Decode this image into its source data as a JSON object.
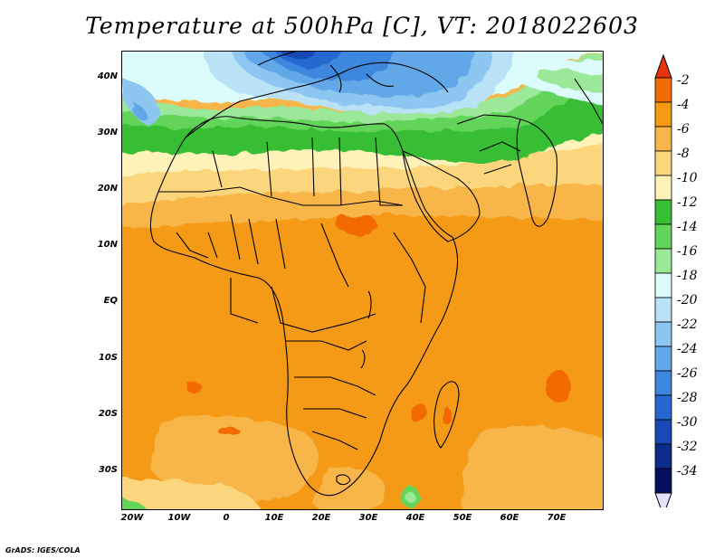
{
  "title": "Temperature at 500hPa [C], VT: 2018022603",
  "credit": "GrADS: IGES/COLA",
  "lat_ticks": [
    "40N",
    "30N",
    "20N",
    "10N",
    "EQ",
    "10S",
    "20S",
    "30S"
  ],
  "lon_ticks": [
    "20W",
    "10W",
    "0",
    "10E",
    "20E",
    "30E",
    "40E",
    "50E",
    "60E",
    "70E"
  ],
  "colorbar": {
    "labels": [
      "-2",
      "-4",
      "-6",
      "-8",
      "-10",
      "-12",
      "-14",
      "-16",
      "-18",
      "-20",
      "-22",
      "-24",
      "-26",
      "-28",
      "-30",
      "-32",
      "-34"
    ],
    "colors": [
      "#e6330b",
      "#f26b05",
      "#f59a12",
      "#f8b64a",
      "#fcd67c",
      "#fdf2b8",
      "#37be35",
      "#62d45a",
      "#9ae898",
      "#dcfcfc",
      "#b9e2f7",
      "#8dc6f0",
      "#62a7e7",
      "#3e87de",
      "#2668cf",
      "#1849b4",
      "#0b2c8c",
      "#060f5e",
      "#e8e0ff"
    ]
  }
}
